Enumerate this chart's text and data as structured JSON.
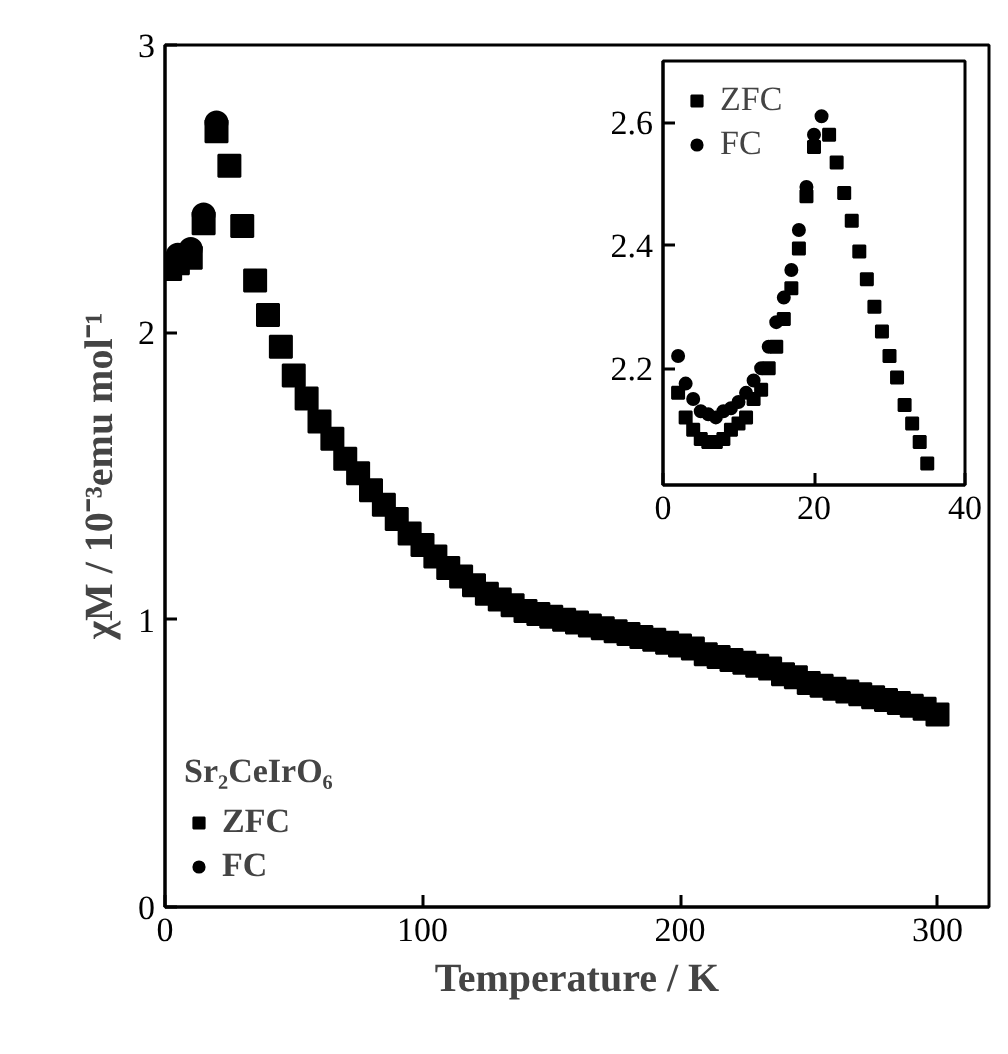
{
  "chart_data": [
    {
      "type": "scatter",
      "xlabel": "Temperature / K",
      "ylabel": "χM / 10⁻³emu mol⁻¹",
      "legend_title": "Sr₂CeIrO₆",
      "legend": "bottom left",
      "grid": false,
      "xlim": [
        0,
        320
      ],
      "ylim": [
        0,
        3
      ],
      "xticks": [
        0,
        100,
        200,
        300
      ],
      "yticks": [
        0,
        1,
        2,
        3
      ],
      "series": [
        {
          "name": "ZFC",
          "color": "#000000",
          "marker": "square",
          "x": [
            2,
            5,
            10,
            15,
            20,
            25,
            30,
            35,
            40,
            45,
            50,
            55,
            60,
            65,
            70,
            75,
            80,
            85,
            90,
            95,
            100,
            105,
            110,
            115,
            120,
            125,
            130,
            135,
            140,
            145,
            150,
            155,
            160,
            165,
            170,
            175,
            180,
            185,
            190,
            195,
            200,
            205,
            210,
            215,
            220,
            225,
            230,
            235,
            240,
            245,
            250,
            255,
            260,
            265,
            270,
            275,
            280,
            285,
            290,
            295,
            300
          ],
          "values": [
            2.22,
            2.24,
            2.26,
            2.38,
            2.7,
            2.58,
            2.37,
            2.18,
            2.06,
            1.95,
            1.85,
            1.77,
            1.69,
            1.63,
            1.56,
            1.51,
            1.45,
            1.4,
            1.35,
            1.3,
            1.26,
            1.22,
            1.18,
            1.15,
            1.12,
            1.09,
            1.07,
            1.05,
            1.03,
            1.02,
            1.01,
            1.0,
            0.99,
            0.98,
            0.97,
            0.96,
            0.95,
            0.94,
            0.93,
            0.92,
            0.91,
            0.9,
            0.88,
            0.87,
            0.86,
            0.85,
            0.84,
            0.83,
            0.81,
            0.8,
            0.78,
            0.77,
            0.76,
            0.75,
            0.74,
            0.73,
            0.72,
            0.71,
            0.7,
            0.69,
            0.67
          ]
        },
        {
          "name": "FC",
          "color": "#000000",
          "marker": "circle",
          "x": [
            5,
            10,
            15,
            20
          ],
          "values": [
            2.27,
            2.29,
            2.41,
            2.73
          ]
        }
      ]
    },
    {
      "type": "scatter",
      "legend": "top left",
      "grid": false,
      "xlim": [
        0,
        40
      ],
      "ylim": [
        2.01,
        2.7
      ],
      "xticks": [
        0,
        20,
        40
      ],
      "yticks": [
        2.2,
        2.4,
        2.6
      ],
      "series": [
        {
          "name": "ZFC",
          "color": "#000000",
          "marker": "square",
          "x": [
            2,
            3,
            4,
            5,
            6,
            7,
            8,
            9,
            10,
            11,
            12,
            13,
            14,
            15,
            16,
            17,
            18,
            19,
            20,
            21,
            22,
            23,
            24,
            25,
            26,
            27,
            28,
            29,
            30,
            31,
            32,
            33,
            34,
            35
          ],
          "values": [
            2.16,
            2.12,
            2.1,
            2.085,
            2.08,
            2.08,
            2.085,
            2.1,
            2.11,
            2.12,
            2.15,
            2.165,
            2.2,
            2.235,
            2.28,
            2.33,
            2.395,
            2.48,
            2.56,
            null,
            2.58,
            2.535,
            2.485,
            2.44,
            2.39,
            2.345,
            2.3,
            2.26,
            2.22,
            2.185,
            2.14,
            2.11,
            2.08,
            2.045
          ]
        },
        {
          "name": "FC",
          "color": "#000000",
          "marker": "circle",
          "x": [
            2,
            3,
            4,
            5,
            6,
            7,
            8,
            9,
            10,
            11,
            12,
            13,
            14,
            15,
            16,
            17,
            18,
            19,
            20,
            21
          ],
          "values": [
            2.22,
            2.175,
            2.15,
            2.13,
            2.125,
            2.12,
            2.13,
            2.135,
            2.145,
            2.16,
            2.18,
            2.2,
            2.235,
            2.275,
            2.315,
            2.36,
            2.425,
            2.495,
            2.58,
            2.61
          ]
        }
      ]
    }
  ]
}
